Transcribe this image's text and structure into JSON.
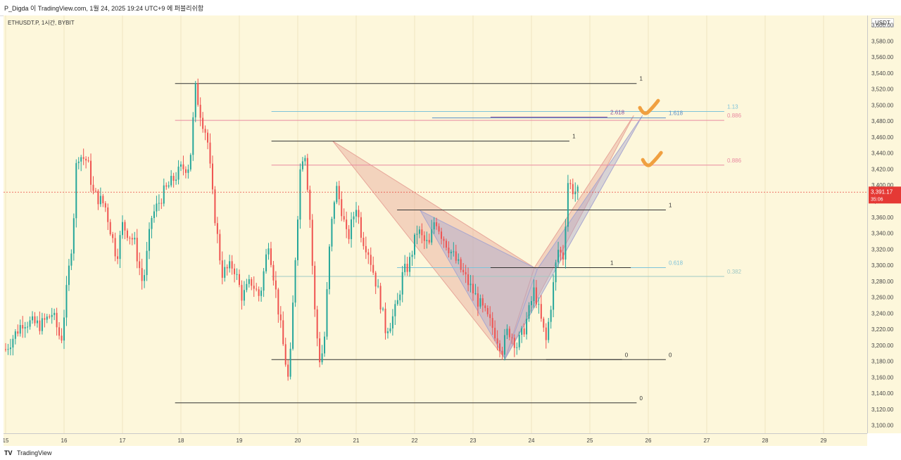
{
  "header": {
    "attribution": "P_Digda 이 TradingView.com, 1월 24, 2025 19:24 UTC+9 에 퍼블리쉬함"
  },
  "symbol": "ETHUSDT.P, 1시간, BYBIT",
  "currency": "USDT",
  "footer": {
    "logo": "TV",
    "brand": "TradingView"
  },
  "colors": {
    "up": "#26a69a",
    "down": "#ef5350",
    "pink": "#e98aa0",
    "blue_line": "#7ec3da",
    "purple": "#8a4f9a",
    "orange_check": "#f0a040",
    "price_tag": "#e53935"
  },
  "chart_data": {
    "type": "candlestick",
    "x_ticks": [
      "15",
      "16",
      "17",
      "18",
      "19",
      "20",
      "21",
      "22",
      "23",
      "24",
      "25",
      "26",
      "27",
      "28",
      "29"
    ],
    "y_ticks": [
      "3,600.00",
      "3,580.00",
      "3,560.00",
      "3,540.00",
      "3,520.00",
      "3,500.00",
      "3,480.00",
      "3,460.00",
      "3,440.00",
      "3,420.00",
      "3,400.00",
      "3,380.00",
      "3,360.00",
      "3,340.00",
      "3,320.00",
      "3,300.00",
      "3,280.00",
      "3,260.00",
      "3,240.00",
      "3,220.00",
      "3,200.00",
      "3,180.00",
      "3,160.00",
      "3,140.00",
      "3,120.00",
      "3,100.00"
    ],
    "ylim": [
      3090,
      3612
    ],
    "current_price": {
      "value": 3391.17,
      "label": "3,391.17",
      "countdown": "35:06"
    },
    "candle_path": [
      {
        "d": 15.0,
        "p": 3195
      },
      {
        "d": 15.3,
        "p": 3230
      },
      {
        "d": 15.6,
        "p": 3225
      },
      {
        "d": 15.8,
        "p": 3240
      },
      {
        "d": 15.95,
        "p": 3205
      },
      {
        "d": 16.15,
        "p": 3340
      },
      {
        "d": 16.22,
        "p": 3440
      },
      {
        "d": 16.4,
        "p": 3430
      },
      {
        "d": 16.5,
        "p": 3390
      },
      {
        "d": 16.7,
        "p": 3375
      },
      {
        "d": 16.9,
        "p": 3310
      },
      {
        "d": 17.0,
        "p": 3350
      },
      {
        "d": 17.2,
        "p": 3330
      },
      {
        "d": 17.35,
        "p": 3275
      },
      {
        "d": 17.5,
        "p": 3360
      },
      {
        "d": 17.7,
        "p": 3390
      },
      {
        "d": 17.85,
        "p": 3405
      },
      {
        "d": 18.0,
        "p": 3420
      },
      {
        "d": 18.15,
        "p": 3425
      },
      {
        "d": 18.25,
        "p": 3520
      },
      {
        "d": 18.35,
        "p": 3485
      },
      {
        "d": 18.45,
        "p": 3460
      },
      {
        "d": 18.55,
        "p": 3380
      },
      {
        "d": 18.7,
        "p": 3290
      },
      {
        "d": 18.9,
        "p": 3300
      },
      {
        "d": 19.05,
        "p": 3260
      },
      {
        "d": 19.2,
        "p": 3280
      },
      {
        "d": 19.35,
        "p": 3260
      },
      {
        "d": 19.5,
        "p": 3330
      },
      {
        "d": 19.6,
        "p": 3280
      },
      {
        "d": 19.75,
        "p": 3200
      },
      {
        "d": 19.85,
        "p": 3150
      },
      {
        "d": 19.95,
        "p": 3300
      },
      {
        "d": 20.05,
        "p": 3430
      },
      {
        "d": 20.12,
        "p": 3445
      },
      {
        "d": 20.2,
        "p": 3370
      },
      {
        "d": 20.3,
        "p": 3230
      },
      {
        "d": 20.38,
        "p": 3180
      },
      {
        "d": 20.45,
        "p": 3200
      },
      {
        "d": 20.55,
        "p": 3330
      },
      {
        "d": 20.65,
        "p": 3400
      },
      {
        "d": 20.75,
        "p": 3370
      },
      {
        "d": 20.85,
        "p": 3330
      },
      {
        "d": 21.0,
        "p": 3375
      },
      {
        "d": 21.1,
        "p": 3335
      },
      {
        "d": 21.2,
        "p": 3320
      },
      {
        "d": 21.3,
        "p": 3290
      },
      {
        "d": 21.4,
        "p": 3260
      },
      {
        "d": 21.5,
        "p": 3220
      },
      {
        "d": 21.6,
        "p": 3230
      },
      {
        "d": 21.7,
        "p": 3250
      },
      {
        "d": 21.8,
        "p": 3290
      },
      {
        "d": 21.9,
        "p": 3300
      },
      {
        "d": 22.05,
        "p": 3345
      },
      {
        "d": 22.15,
        "p": 3330
      },
      {
        "d": 22.25,
        "p": 3325
      },
      {
        "d": 22.35,
        "p": 3360
      },
      {
        "d": 22.45,
        "p": 3340
      },
      {
        "d": 22.6,
        "p": 3320
      },
      {
        "d": 22.75,
        "p": 3300
      },
      {
        "d": 22.9,
        "p": 3280
      },
      {
        "d": 23.05,
        "p": 3260
      },
      {
        "d": 23.2,
        "p": 3240
      },
      {
        "d": 23.35,
        "p": 3220
      },
      {
        "d": 23.5,
        "p": 3195
      },
      {
        "d": 23.6,
        "p": 3220
      },
      {
        "d": 23.75,
        "p": 3200
      },
      {
        "d": 23.85,
        "p": 3215
      },
      {
        "d": 23.95,
        "p": 3240
      },
      {
        "d": 24.05,
        "p": 3270
      },
      {
        "d": 24.15,
        "p": 3235
      },
      {
        "d": 24.25,
        "p": 3205
      },
      {
        "d": 24.35,
        "p": 3260
      },
      {
        "d": 24.45,
        "p": 3320
      },
      {
        "d": 24.55,
        "p": 3310
      },
      {
        "d": 24.62,
        "p": 3405
      },
      {
        "d": 24.7,
        "p": 3395
      },
      {
        "d": 24.8,
        "p": 3390
      }
    ],
    "harmonic_patterns": [
      {
        "name": "",
        "color": "#e7a79a",
        "points": [
          {
            "d": 20.6,
            "p": 3455
          },
          {
            "d": 23.55,
            "p": 3183
          },
          {
            "d": 24.05,
            "p": 3297
          },
          {
            "d": 25.75,
            "p": 3487
          }
        ]
      },
      {
        "name": "",
        "color": "#a9a7cf",
        "points": [
          {
            "d": 22.1,
            "p": 3368
          },
          {
            "d": 23.55,
            "p": 3183
          },
          {
            "d": 24.1,
            "p": 3295
          },
          {
            "d": 25.9,
            "p": 3487
          }
        ]
      }
    ],
    "fib_lines": [
      {
        "x1": 17.9,
        "x2": 25.8,
        "p": 3527,
        "color": "#333333",
        "label": "1",
        "lx": 25.85
      },
      {
        "x1": 17.9,
        "x2": 25.8,
        "p": 3128,
        "color": "#333333",
        "label": "0",
        "lx": 25.85
      },
      {
        "x1": 19.55,
        "x2": 24.65,
        "p": 3455,
        "color": "#333333",
        "label": "1",
        "lx": 24.7
      },
      {
        "x1": 19.55,
        "x2": 25.55,
        "p": 3182,
        "color": "#333333",
        "label": "0",
        "lx": 25.6
      },
      {
        "x1": 21.7,
        "x2": 26.3,
        "p": 3369,
        "color": "#333333",
        "label": "1",
        "lx": 26.35
      },
      {
        "x1": 24.25,
        "x2": 26.3,
        "p": 3182,
        "color": "#333333",
        "label": "0",
        "lx": 26.35
      },
      {
        "x1": 17.9,
        "x2": 27.3,
        "p": 3481,
        "color": "#e98aa0",
        "label": "0.886",
        "lx": 27.35
      },
      {
        "x1": 19.55,
        "x2": 27.3,
        "p": 3425,
        "color": "#e98aa0",
        "label": "0.886",
        "lx": 27.35
      },
      {
        "x1": 19.55,
        "x2": 27.3,
        "p": 3286,
        "color": "#9fc9c4",
        "label": "0.382",
        "lx": 27.35
      },
      {
        "x1": 19.55,
        "x2": 27.3,
        "p": 3492,
        "color": "#7ec3da",
        "label": "1.13",
        "lx": 27.35
      },
      {
        "x1": 21.7,
        "x2": 26.3,
        "p": 3297,
        "color": "#7ec3da",
        "label": "0.618",
        "lx": 26.35
      },
      {
        "x1": 22.3,
        "x2": 26.3,
        "p": 3484,
        "color": "#5b8fc7",
        "label": "1.618",
        "lx": 26.35
      },
      {
        "x1": 23.3,
        "x2": 25.3,
        "p": 3485,
        "color": "#8a4f9a",
        "label": "2.618",
        "lx": 25.35
      },
      {
        "x1": 23.3,
        "x2": 25.7,
        "p": 3297,
        "color": "#333333",
        "label": "1",
        "lx": 25.35
      }
    ],
    "checkmarks": [
      {
        "d": 26.0,
        "p": 3495
      },
      {
        "d": 26.05,
        "p": 3430
      }
    ]
  }
}
